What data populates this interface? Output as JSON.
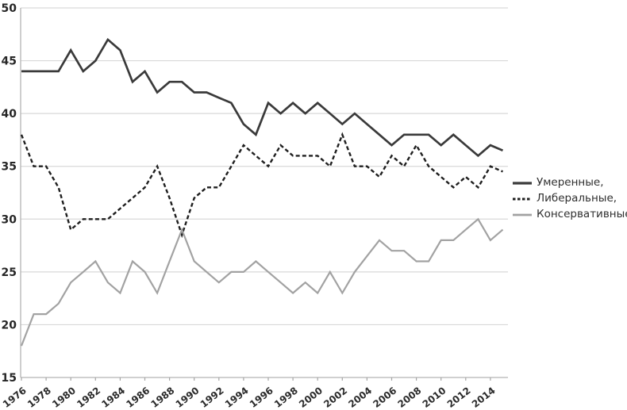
{
  "chart_data": {
    "type": "line",
    "title": "",
    "xlabel": "",
    "ylabel": "",
    "ylim": [
      15,
      50
    ],
    "y_ticks": [
      50,
      45,
      40,
      35,
      30,
      25,
      20,
      15
    ],
    "x_tick_years": [
      1976,
      1978,
      1980,
      1982,
      1984,
      1986,
      1988,
      1990,
      1992,
      1994,
      1996,
      1998,
      2000,
      2002,
      2004,
      2006,
      2008,
      2010,
      2012,
      2014
    ],
    "x": [
      1976,
      1977,
      1978,
      1979,
      1980,
      1981,
      1982,
      1983,
      1984,
      1985,
      1986,
      1987,
      1988,
      1989,
      1990,
      1991,
      1992,
      1993,
      1994,
      1995,
      1996,
      1997,
      1998,
      1999,
      2000,
      2001,
      2002,
      2003,
      2004,
      2005,
      2006,
      2007,
      2008,
      2009,
      2010,
      2011,
      2012,
      2013,
      2014,
      2015
    ],
    "grid": "horizontal",
    "legend_position": "right",
    "series": [
      {
        "name": "Умеренные,",
        "style": "solid-dark",
        "color": "#3a3a3a",
        "width": 2.7,
        "dash": null,
        "values": [
          44,
          44,
          44,
          44,
          46,
          44,
          45,
          47,
          46,
          43,
          44,
          42,
          43,
          43,
          42,
          42,
          41.5,
          41,
          39,
          38,
          41,
          40,
          41,
          40,
          41,
          40,
          39,
          40,
          39,
          38,
          37,
          38,
          38,
          38,
          37,
          38,
          37,
          36,
          37,
          36.5
        ]
      },
      {
        "name": "Либеральные,",
        "style": "dashed-black",
        "color": "#1f1f1f",
        "width": 2.4,
        "dash": "5 3.2",
        "values": [
          38,
          35,
          35,
          33,
          29,
          30,
          30,
          30,
          31,
          32,
          33,
          35,
          32,
          28.5,
          32,
          33,
          33,
          35,
          37,
          36,
          35,
          37,
          36,
          36,
          36,
          35,
          38,
          35,
          35,
          34,
          36,
          35,
          37,
          35,
          34,
          33,
          34,
          33,
          35,
          34.5
        ]
      },
      {
        "name": "Консервативные",
        "style": "solid-gray",
        "color": "#a2a2a2",
        "width": 2.2,
        "dash": null,
        "values": [
          18,
          21,
          21,
          22,
          24,
          25,
          26,
          24,
          23,
          26,
          25,
          23,
          26,
          29,
          26,
          25,
          24,
          25,
          25,
          26,
          25,
          24,
          23,
          24,
          23,
          25,
          23,
          25,
          26.5,
          28,
          27,
          27,
          26,
          26,
          28,
          28,
          29,
          30,
          28,
          29
        ]
      }
    ],
    "axis_colors": {
      "grid": "#d9d9d9",
      "axis": "#b3b3b3",
      "tick": "#a6a6a6"
    }
  },
  "legend": {
    "items": [
      {
        "label": "Умеренные,"
      },
      {
        "label": "Либеральные,"
      },
      {
        "label": "Консервативные"
      }
    ]
  }
}
